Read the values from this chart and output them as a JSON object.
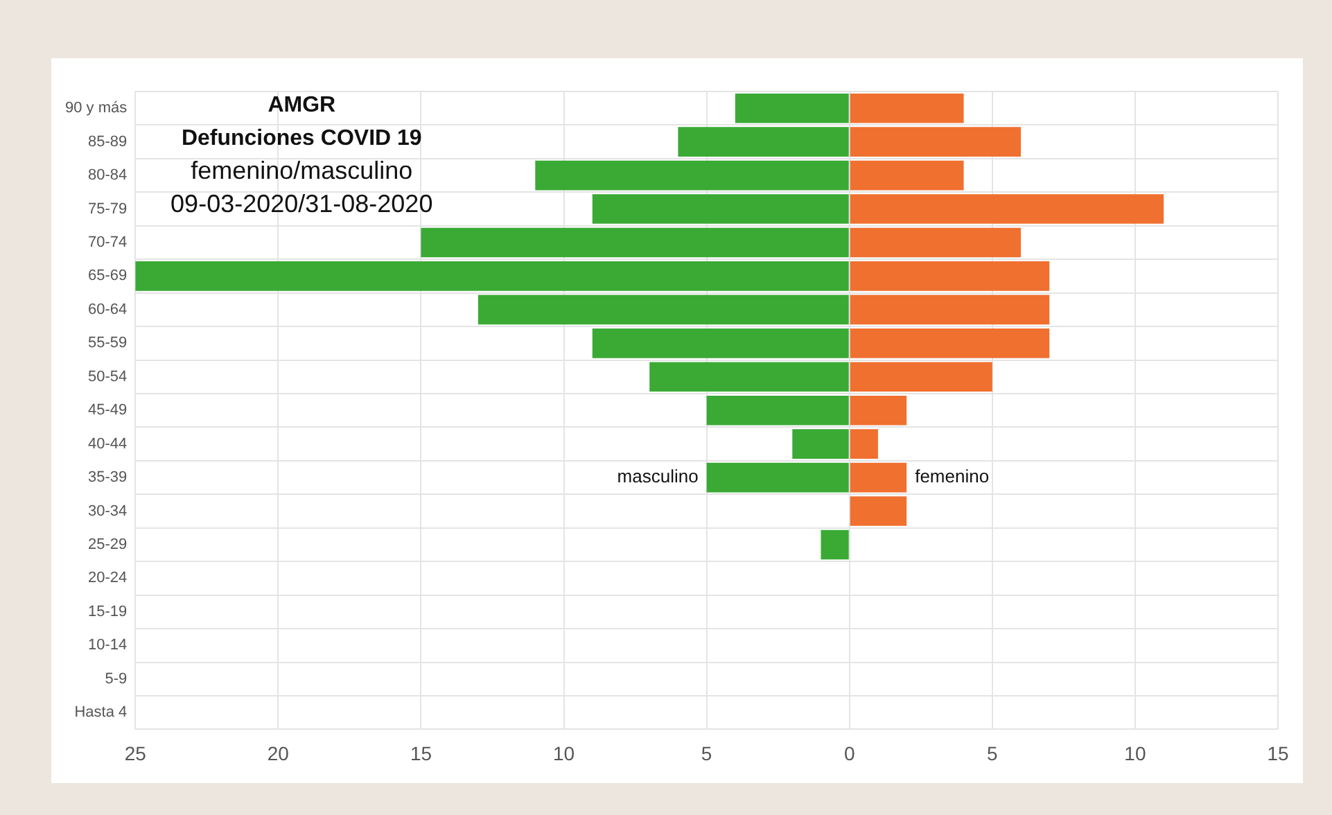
{
  "chart_data": {
    "type": "bar",
    "orientation": "horizontal",
    "stacked": true,
    "title": "AMGR",
    "subtitle": "Defunciones COVID 19",
    "annotations": [
      "femenino/masculino",
      "09-03-2020/31-08-2020"
    ],
    "categories": [
      "90 y más",
      "85-89",
      "80-84",
      "75-79",
      "70-74",
      "65-69",
      "60-64",
      "55-59",
      "50-54",
      "45-49",
      "40-44",
      "35-39",
      "30-34",
      "25-29",
      "20-24",
      "15-19",
      "10-14",
      "5-9",
      "Hasta 4"
    ],
    "series": [
      {
        "name": "masculino",
        "color": "#3aaa35",
        "values": [
          -4,
          -6,
          -11,
          -9,
          -15,
          -25,
          -13,
          -9,
          -7,
          -5,
          -2,
          -5,
          0,
          -1,
          0,
          0,
          0,
          0,
          0
        ]
      },
      {
        "name": "femenino",
        "color": "#f07030",
        "values": [
          4,
          6,
          4,
          11,
          6,
          7,
          7,
          7,
          5,
          2,
          1,
          2,
          2,
          0,
          0,
          0,
          0,
          0,
          0
        ]
      }
    ],
    "xlim": [
      -25,
      15
    ],
    "xticks": [
      {
        "value": -25,
        "label": "25"
      },
      {
        "value": -20,
        "label": "20"
      },
      {
        "value": -15,
        "label": "15"
      },
      {
        "value": -10,
        "label": "10"
      },
      {
        "value": -5,
        "label": "5"
      },
      0,
      5,
      10,
      15
    ],
    "grid": true,
    "legend": false
  }
}
